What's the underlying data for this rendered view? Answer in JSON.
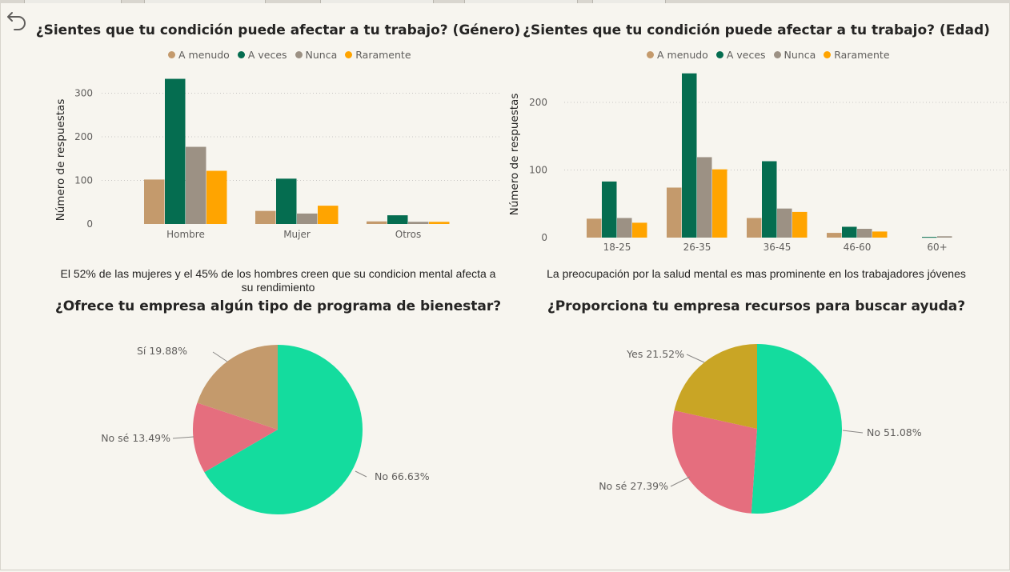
{
  "chart_data": [
    {
      "type": "bar",
      "title": "¿Sientes que tu condición puede afectar a tu trabajo? (Género)",
      "ylabel": "Número de respuestas",
      "xlabel": "",
      "categories": [
        "Hombre",
        "Mujer",
        "Otros"
      ],
      "ylim": [
        0,
        345
      ],
      "yticks": [
        0,
        100,
        200,
        300
      ],
      "grid": true,
      "legend_position": "top-center",
      "series": [
        {
          "name": "A menudo",
          "color": "#c49a6c",
          "values": [
            102,
            30,
            6
          ]
        },
        {
          "name": "A veces",
          "color": "#056d50",
          "values": [
            333,
            104,
            20
          ]
        },
        {
          "name": "Nunca",
          "color": "#9c9184",
          "values": [
            177,
            24,
            5
          ]
        },
        {
          "name": "Raramente",
          "color": "#ffa400",
          "values": [
            122,
            42,
            5
          ]
        }
      ],
      "footnote": "El 52% de las mujeres y el 45% de los hombres creen que su condicion mental afecta a su rendimiento"
    },
    {
      "type": "bar",
      "title": "¿Sientes que tu condición puede afectar a tu trabajo? (Edad)",
      "ylabel": "Número de respuestas",
      "xlabel": "",
      "categories": [
        "18-25",
        "26-35",
        "36-45",
        "46-60",
        "60+"
      ],
      "ylim": [
        0,
        245
      ],
      "yticks": [
        0,
        100,
        200
      ],
      "grid": true,
      "legend_position": "top-center",
      "series": [
        {
          "name": "A menudo",
          "color": "#c49a6c",
          "values": [
            28,
            74,
            29,
            7,
            0
          ]
        },
        {
          "name": "A veces",
          "color": "#056d50",
          "values": [
            83,
            243,
            113,
            16,
            1
          ]
        },
        {
          "name": "Nunca",
          "color": "#9c9184",
          "values": [
            29,
            119,
            43,
            13,
            2
          ]
        },
        {
          "name": "Raramente",
          "color": "#ffa400",
          "values": [
            22,
            101,
            38,
            9,
            0
          ]
        }
      ],
      "footnote": "La preocupación por la salud mental es mas prominente en los trabajadores jóvenes"
    },
    {
      "type": "pie",
      "title": "¿Ofrece tu empresa algún tipo de programa de bienestar?",
      "slices": [
        {
          "label": "No",
          "value": 66.63,
          "text": "No 66.63%",
          "color": "#14dc9e"
        },
        {
          "label": "No sé",
          "value": 13.49,
          "text": "No sé 13.49%",
          "color": "#e56e7e"
        },
        {
          "label": "Sí",
          "value": 19.88,
          "text": "Sí 19.88%",
          "color": "#c49a6c"
        }
      ]
    },
    {
      "type": "pie",
      "title": "¿Proporciona tu empresa recursos para buscar ayuda?",
      "slices": [
        {
          "label": "No",
          "value": 51.08,
          "text": "No 51.08%",
          "color": "#14dc9e"
        },
        {
          "label": "No sé",
          "value": 27.39,
          "text": "No sé 27.39%",
          "color": "#e56e7e"
        },
        {
          "label": "Yes",
          "value": 21.52,
          "text": "Yes 21.52%",
          "color": "#c9a525"
        }
      ]
    }
  ],
  "ui": {
    "back_icon": "undo-arrow-icon",
    "axis_text_color": "#605e5c",
    "grid_color": "#c8c6c4"
  }
}
